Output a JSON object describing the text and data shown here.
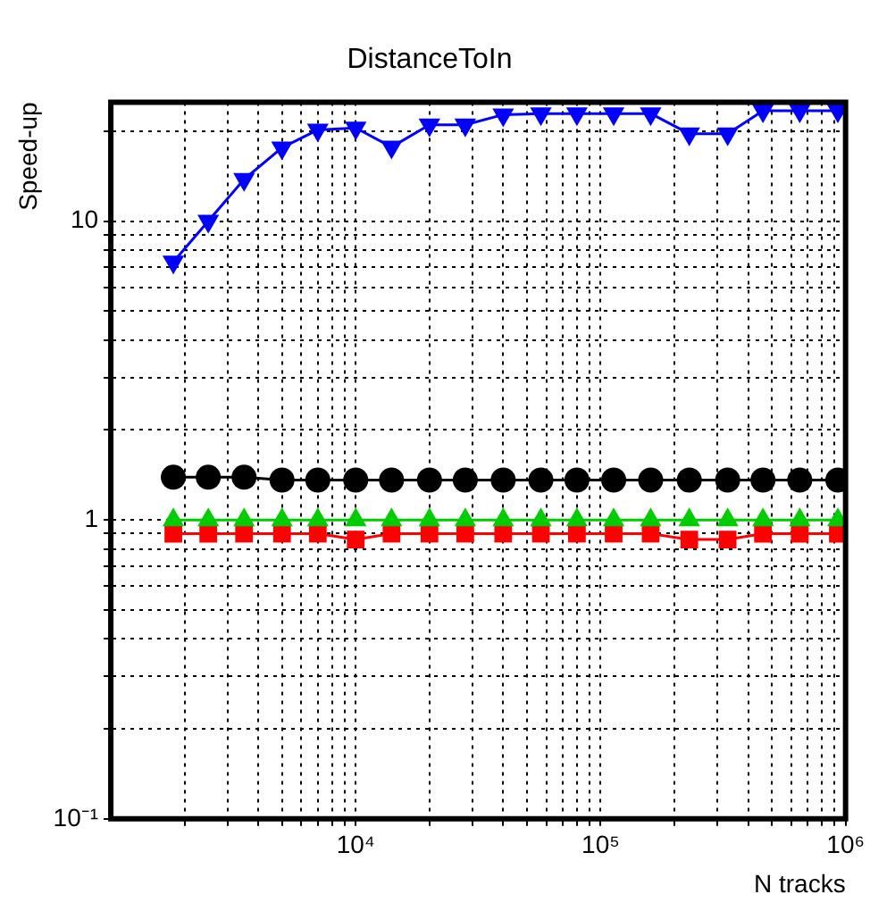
{
  "chart_data": {
    "type": "line",
    "title": "DistanceToIn",
    "xlabel": "N tracks",
    "ylabel": "Speed-up",
    "x": [
      1800,
      2500,
      3500,
      5000,
      7000,
      10000,
      14000,
      20000,
      28000,
      40000,
      57000,
      80000,
      113000,
      160000,
      230000,
      330000,
      460000,
      650000,
      930000
    ],
    "series": [
      {
        "color": "#0000ff",
        "marker": "triangle-down",
        "values": [
          7.3,
          10,
          13.8,
          17.6,
          20.2,
          20.5,
          17.7,
          21,
          21,
          22.7,
          22.9,
          22.9,
          22.9,
          22.9,
          19.6,
          19.6,
          23.4,
          23.4,
          23.4
        ]
      },
      {
        "color": "#000000",
        "marker": "circle",
        "values": [
          1.39,
          1.39,
          1.39,
          1.36,
          1.36,
          1.36,
          1.36,
          1.36,
          1.36,
          1.36,
          1.36,
          1.36,
          1.36,
          1.36,
          1.36,
          1.36,
          1.36,
          1.36,
          1.36
        ]
      },
      {
        "color": "#00cc00",
        "marker": "triangle",
        "values": [
          1,
          1,
          1,
          1,
          1,
          1,
          1,
          1,
          1,
          1,
          1,
          1,
          1,
          1,
          1,
          1,
          1,
          1,
          1
        ]
      },
      {
        "color": "#ff0000",
        "marker": "square",
        "values": [
          0.9,
          0.9,
          0.9,
          0.9,
          0.9,
          0.86,
          0.9,
          0.9,
          0.9,
          0.9,
          0.9,
          0.9,
          0.9,
          0.9,
          0.86,
          0.86,
          0.9,
          0.9,
          0.9
        ]
      }
    ],
    "log": "xy",
    "grid": true,
    "legend": false,
    "xlim": [
      1000,
      1000000
    ],
    "ylim": [
      0.1,
      25
    ],
    "xticks": [
      {
        "value": 2000,
        "label": null
      },
      {
        "value": 3000,
        "label": null
      },
      {
        "value": 4000,
        "label": null
      },
      {
        "value": 5000,
        "label": null
      },
      {
        "value": 6000,
        "label": null
      },
      {
        "value": 7000,
        "label": null
      },
      {
        "value": 8000,
        "label": null
      },
      {
        "value": 9000,
        "label": null
      },
      {
        "value": 10000,
        "label": "10⁴"
      },
      {
        "value": 20000,
        "label": null
      },
      {
        "value": 30000,
        "label": null
      },
      {
        "value": 40000,
        "label": null
      },
      {
        "value": 50000,
        "label": null
      },
      {
        "value": 60000,
        "label": null
      },
      {
        "value": 70000,
        "label": null
      },
      {
        "value": 80000,
        "label": null
      },
      {
        "value": 90000,
        "label": null
      },
      {
        "value": 100000,
        "label": "10⁵"
      },
      {
        "value": 200000,
        "label": null
      },
      {
        "value": 300000,
        "label": null
      },
      {
        "value": 400000,
        "label": null
      },
      {
        "value": 500000,
        "label": null
      },
      {
        "value": 600000,
        "label": null
      },
      {
        "value": 700000,
        "label": null
      },
      {
        "value": 800000,
        "label": null
      },
      {
        "value": 900000,
        "label": null
      },
      {
        "value": 1000000,
        "label": "10⁶"
      }
    ],
    "yticks": [
      {
        "value": 0.1,
        "label": "10⁻¹"
      },
      {
        "value": 0.2,
        "label": null
      },
      {
        "value": 0.3,
        "label": null
      },
      {
        "value": 0.4,
        "label": null
      },
      {
        "value": 0.5,
        "label": null
      },
      {
        "value": 0.6,
        "label": null
      },
      {
        "value": 0.7,
        "label": null
      },
      {
        "value": 0.8,
        "label": null
      },
      {
        "value": 0.9,
        "label": null
      },
      1,
      {
        "value": 2,
        "label": null
      },
      {
        "value": 3,
        "label": null
      },
      {
        "value": 4,
        "label": null
      },
      {
        "value": 5,
        "label": null
      },
      {
        "value": 6,
        "label": null
      },
      {
        "value": 7,
        "label": null
      },
      {
        "value": 8,
        "label": null
      },
      {
        "value": 9,
        "label": null
      },
      10,
      {
        "value": 20,
        "label": null
      }
    ]
  }
}
